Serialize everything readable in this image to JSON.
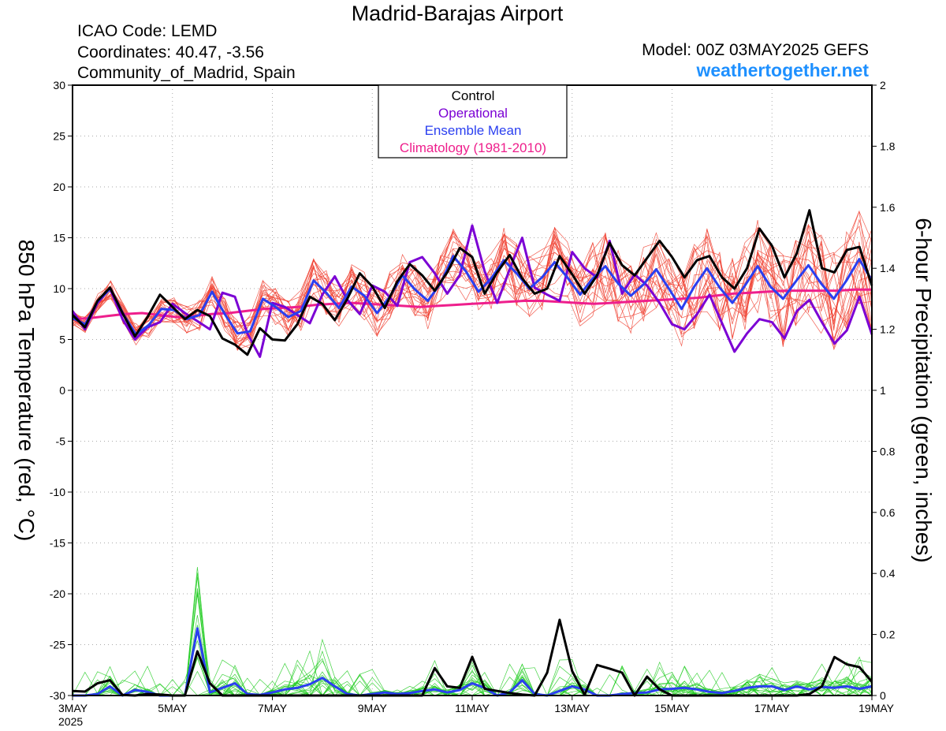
{
  "header": {
    "title": "Madrid-Barajas Airport",
    "icao": "ICAO Code: LEMD",
    "coordinates": "Coordinates: 40.47, -3.56",
    "region": "Community_of_Madrid, Spain",
    "model": "Model: 00Z 03MAY2025 GEFS",
    "site": "weathertogether.net"
  },
  "colors": {
    "control": "#000000",
    "operational": "#7b00d4",
    "ensemble_mean": "#2a3ff0",
    "climatology": "#ee1f8c",
    "members_temp": "#f04030",
    "members_precip": "#22cc22"
  },
  "chart_data": {
    "type": "line",
    "xlabel_ticks": [
      "3MAY",
      "5MAY",
      "7MAY",
      "9MAY",
      "11MAY",
      "13MAY",
      "15MAY",
      "17MAY",
      "19MAY"
    ],
    "x_year_label": "2025",
    "x": [
      "3MAY",
      "19MAY"
    ],
    "ylabel_left": "850 hPa Temperature (red, °C)",
    "ylabel_right": "6-hour Precipitation (green, inches)",
    "ylim_left": [
      -30,
      30
    ],
    "ylim_right": [
      0,
      2
    ],
    "yticks_left": [
      30,
      25,
      20,
      15,
      10,
      5,
      0,
      -5,
      -10,
      -15,
      -20,
      -25,
      -30
    ],
    "yticks_right": [
      2,
      1.8,
      1.6,
      1.4,
      1.2,
      1,
      0.8,
      0.6,
      0.4,
      0.2,
      0
    ],
    "grid": true,
    "legend_position": "top-center",
    "legend": [
      "Control",
      "Operational",
      "Ensemble Mean",
      "Climatology (1981-2010)"
    ],
    "temperature": {
      "control": [
        7.4,
        6.2,
        8.8,
        10.1,
        7.6,
        5.3,
        7.2,
        9.4,
        8.2,
        7.0,
        7.9,
        7.3,
        5.1,
        4.5,
        3.5,
        6.1,
        5.0,
        4.9,
        6.5,
        9.2,
        8.5,
        6.9,
        9.0,
        11.5,
        10.2,
        8.1,
        10.7,
        12.4,
        11.3,
        9.8,
        11.6,
        14.0,
        13.1,
        9.5,
        11.6,
        13.3,
        11.0,
        9.5,
        10.0,
        13.2,
        11.4,
        9.5,
        11.3,
        14.5,
        12.3,
        11.3,
        13.0,
        14.7,
        13.1,
        11.1,
        12.8,
        13.2,
        11.1,
        10.0,
        12.0,
        15.9,
        14.2,
        11.1,
        13.5,
        17.7,
        12.0,
        11.6,
        13.8,
        14.1,
        10.3
      ],
      "operational": [
        7.8,
        6.0,
        8.6,
        10.0,
        7.0,
        5.0,
        6.2,
        6.7,
        8.5,
        7.6,
        6.8,
        6.0,
        9.6,
        9.2,
        5.6,
        3.3,
        8.6,
        8.2,
        7.4,
        6.6,
        9.4,
        11.2,
        8.9,
        7.5,
        10.3,
        9.7,
        8.3,
        12.6,
        13.1,
        11.5,
        9.5,
        11.3,
        16.2,
        11.7,
        8.6,
        11.9,
        15.0,
        10.1,
        9.4,
        8.8,
        13.6,
        12.0,
        11.1,
        14.7,
        9.5,
        11.4,
        10.3,
        8.6,
        6.5,
        6.0,
        7.5,
        9.4,
        6.6,
        3.8,
        5.6,
        7.0,
        6.7,
        5.1,
        7.8,
        8.9,
        6.7,
        4.6,
        5.9,
        9.2,
        5.5
      ],
      "ensemble_mean": [
        7.1,
        6.5,
        8.8,
        10.0,
        7.5,
        5.5,
        6.4,
        8.0,
        7.9,
        7.0,
        7.4,
        9.7,
        7.5,
        5.6,
        5.8,
        9.0,
        8.2,
        7.2,
        7.8,
        10.8,
        9.6,
        8.1,
        10.2,
        9.3,
        7.6,
        9.2,
        11.3,
        9.9,
        8.8,
        10.5,
        13.2,
        11.7,
        9.7,
        11.0,
        12.8,
        11.5,
        10.0,
        11.1,
        12.6,
        11.1,
        9.4,
        11.0,
        12.2,
        10.5,
        9.3,
        10.4,
        11.9,
        10.0,
        8.0,
        10.2,
        12.0,
        10.1,
        8.6,
        10.3,
        12.2,
        10.2,
        9.0,
        10.7,
        12.3,
        10.5,
        9.0,
        10.8,
        12.9,
        10.8
      ],
      "climatology": [
        7.0,
        7.1,
        7.3,
        7.5,
        7.6,
        7.4,
        7.2,
        7.3,
        7.5,
        7.6,
        7.8,
        8.0,
        8.1,
        8.2,
        8.4,
        8.5,
        8.6,
        8.5,
        8.4,
        8.3,
        8.2,
        8.3,
        8.4,
        8.5,
        8.6,
        8.7,
        8.8,
        8.8,
        8.7,
        8.6,
        8.5,
        8.6,
        8.7,
        8.8,
        8.9,
        9.0,
        9.1,
        9.3,
        9.5,
        9.6,
        9.7,
        9.8,
        9.8,
        9.8,
        9.8,
        9.9,
        9.9
      ]
    },
    "precipitation": {
      "control": [
        0.015,
        0.013,
        0.04,
        0.05,
        0.002,
        0.0,
        0.005,
        0.003,
        0.0,
        0.0,
        0.145,
        0.04,
        0.0,
        0.0,
        0.0,
        0.0,
        0.0,
        0.0,
        0.0,
        0.0,
        0.0,
        0.0,
        0.0,
        0.0,
        0.0,
        0.0,
        0.0,
        0.0,
        0.0,
        0.09,
        0.03,
        0.025,
        0.127,
        0.022,
        0.015,
        0.008,
        0.003,
        0.0,
        0.075,
        0.248,
        0.08,
        0.002,
        0.1,
        0.088,
        0.075,
        0.0,
        0.062,
        0.02,
        0.0,
        0.0,
        0.0,
        0.0,
        0.0,
        0.0,
        0.0,
        0.0,
        0.0,
        0.0,
        0.0,
        0.005,
        0.03,
        0.126,
        0.102,
        0.093,
        0.045
      ],
      "ensemble_mean": [
        0.0,
        0.0,
        0.005,
        0.03,
        0.0,
        0.018,
        0.012,
        0.0,
        0.0,
        0.0,
        0.22,
        0.01,
        0.025,
        0.04,
        0.005,
        0.002,
        0.01,
        0.02,
        0.025,
        0.037,
        0.058,
        0.03,
        0.005,
        0.0,
        0.005,
        0.01,
        0.005,
        0.008,
        0.015,
        0.02,
        0.01,
        0.018,
        0.04,
        0.025,
        0.0,
        0.01,
        0.05,
        0.005,
        0.0,
        0.015,
        0.03,
        0.02,
        0.0,
        0.0,
        0.005,
        0.008,
        0.01,
        0.02,
        0.022,
        0.025,
        0.02,
        0.012,
        0.008,
        0.015,
        0.025,
        0.03,
        0.03,
        0.018,
        0.03,
        0.02,
        0.028,
        0.025,
        0.03,
        0.022,
        0.03
      ]
    }
  }
}
